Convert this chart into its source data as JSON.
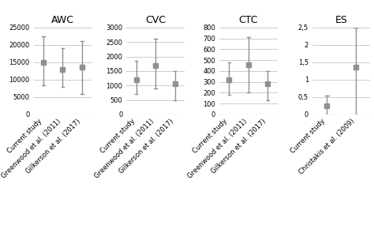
{
  "panels": [
    {
      "title": "AWC",
      "categories": [
        "Current study",
        "Greenwood et al. (2011)",
        "Gilkerson et al. (2017)"
      ],
      "means": [
        15000,
        13000,
        13500
      ],
      "lower": [
        8500,
        8000,
        6000
      ],
      "upper": [
        22500,
        19000,
        21000
      ],
      "ylim": [
        0,
        25000
      ],
      "yticks": [
        0,
        5000,
        10000,
        15000,
        20000,
        25000
      ]
    },
    {
      "title": "CVC",
      "categories": [
        "Current study",
        "Greenwood et al. (2011)",
        "Gilkerson et al. (2017)"
      ],
      "means": [
        1200,
        1700,
        1050
      ],
      "lower": [
        700,
        900,
        500
      ],
      "upper": [
        1850,
        2600,
        1500
      ],
      "ylim": [
        0,
        3000
      ],
      "yticks": [
        0,
        500,
        1000,
        1500,
        2000,
        2500,
        3000
      ]
    },
    {
      "title": "CTC",
      "categories": [
        "Current study",
        "Greenwood et al. (2011)",
        "Gilkerson et al. (2017)"
      ],
      "means": [
        320,
        460,
        280
      ],
      "lower": [
        180,
        200,
        130
      ],
      "upper": [
        480,
        710,
        400
      ],
      "ylim": [
        0,
        800
      ],
      "yticks": [
        0,
        100,
        200,
        300,
        400,
        500,
        600,
        700,
        800
      ]
    },
    {
      "title": "ES",
      "categories": [
        "Current study",
        "Christakis et al. (2009)"
      ],
      "means": [
        0.25,
        1.35
      ],
      "lower": [
        0.0,
        0.0
      ],
      "upper": [
        0.55,
        2.5
      ],
      "ylim": [
        0,
        2.5
      ],
      "yticks": [
        0,
        0.5,
        1.0,
        1.5,
        2.0,
        2.5
      ]
    }
  ],
  "marker_color": "#909090",
  "marker_size": 4,
  "line_color": "#909090",
  "line_width": 1.0,
  "tick_label_fontsize": 6.0,
  "title_fontsize": 9,
  "xlabel_fontsize": 6.0,
  "background_color": "#ffffff",
  "grid_color": "#cccccc",
  "ytick_label_format_es": [
    0,
    "0,5",
    1,
    "1,5",
    2,
    "2,5"
  ]
}
